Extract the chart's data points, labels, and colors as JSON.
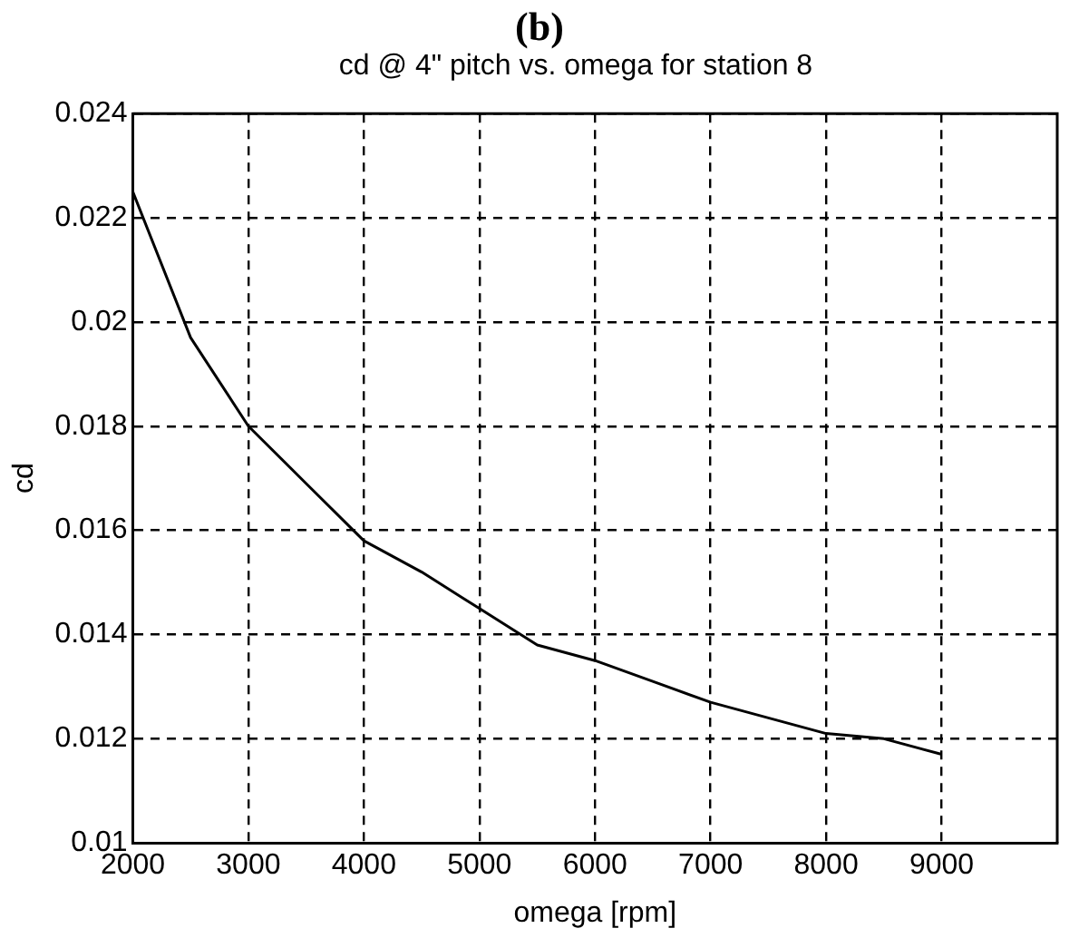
{
  "chart_data": {
    "type": "line",
    "title": "(b)",
    "subtitle": "cd @ 4\" pitch vs. omega for station 8",
    "xlabel": "omega [rpm]",
    "ylabel": "cd",
    "x": [
      2000,
      2500,
      3000,
      3500,
      4000,
      4500,
      5000,
      5500,
      6000,
      6500,
      7000,
      7500,
      8000,
      8500,
      9000
    ],
    "series": [
      {
        "color": "#000000",
        "values": [
          0.0225,
          0.0197,
          0.018,
          0.0169,
          0.0158,
          0.0152,
          0.0145,
          0.0138,
          0.0135,
          0.0131,
          0.0127,
          0.0124,
          0.0121,
          0.012,
          0.0117
        ]
      }
    ],
    "xlim": [
      2000,
      10000
    ],
    "xticks": [
      2000,
      3000,
      4000,
      5000,
      6000,
      7000,
      8000,
      9000
    ],
    "ylim": [
      0.01,
      0.024
    ],
    "yticks": [
      0.01,
      0.012,
      0.014,
      0.016,
      0.018,
      0.02,
      0.022,
      0.024
    ],
    "grid": true,
    "legend": false,
    "marker": "none",
    "line_style": "solid"
  }
}
